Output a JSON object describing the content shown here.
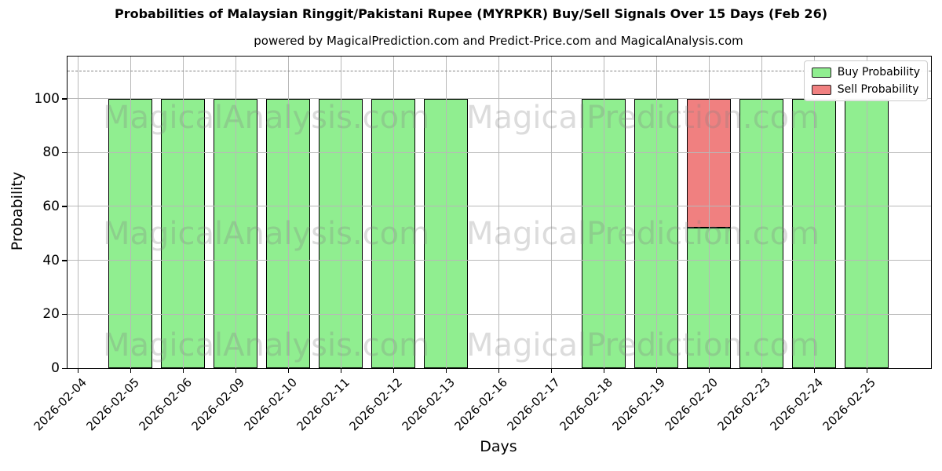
{
  "title": "Probabilities of Malaysian Ringgit/Pakistani Rupee (MYRPKR) Buy/Sell Signals Over 15 Days (Feb 26)",
  "subtitle": "powered by MagicalPrediction.com and Predict-Price.com and MagicalAnalysis.com",
  "watermarks": {
    "left": "MagicalAnalysis.com",
    "right": "MagicalPrediction.com"
  },
  "legend": [
    {
      "label": "Buy Probability",
      "color": "#90ee90"
    },
    {
      "label": "Sell Probability",
      "color": "#f08080"
    }
  ],
  "colors": {
    "buy": "#90ee90",
    "sell": "#f08080",
    "bar_edge": "#000000",
    "grid": "#b8b8b8",
    "dashed_line": "#858585",
    "watermark": "rgba(128,128,128,0.28)"
  },
  "chart_data": {
    "type": "bar",
    "stacked": true,
    "title": "Probabilities of Malaysian Ringgit/Pakistani Rupee (MYRPKR) Buy/Sell Signals Over 15 Days (Feb 26)",
    "xlabel": "Days",
    "ylabel": "Probability",
    "ylim": [
      0,
      115.6
    ],
    "yticks": [
      0,
      20,
      40,
      60,
      80,
      100
    ],
    "dashed_reference_line_y": 110,
    "grid": true,
    "legend_position": "upper right",
    "categories": [
      "2026-02-04",
      "2026-02-05",
      "2026-02-06",
      "2026-02-09",
      "2026-02-10",
      "2026-02-11",
      "2026-02-12",
      "2026-02-13",
      "2026-02-16",
      "2026-02-17",
      "2026-02-18",
      "2026-02-19",
      "2026-02-20",
      "2026-02-23",
      "2026-02-24",
      "2026-02-25"
    ],
    "series": [
      {
        "name": "Buy Probability",
        "color": "#90ee90",
        "values": [
          null,
          100,
          100,
          100,
          100,
          100,
          100,
          100,
          null,
          null,
          100,
          100,
          52,
          100,
          100,
          100
        ]
      },
      {
        "name": "Sell Probability",
        "color": "#f08080",
        "values": [
          null,
          0,
          0,
          0,
          0,
          0,
          0,
          0,
          null,
          null,
          0,
          0,
          48,
          0,
          0,
          0
        ]
      }
    ]
  }
}
